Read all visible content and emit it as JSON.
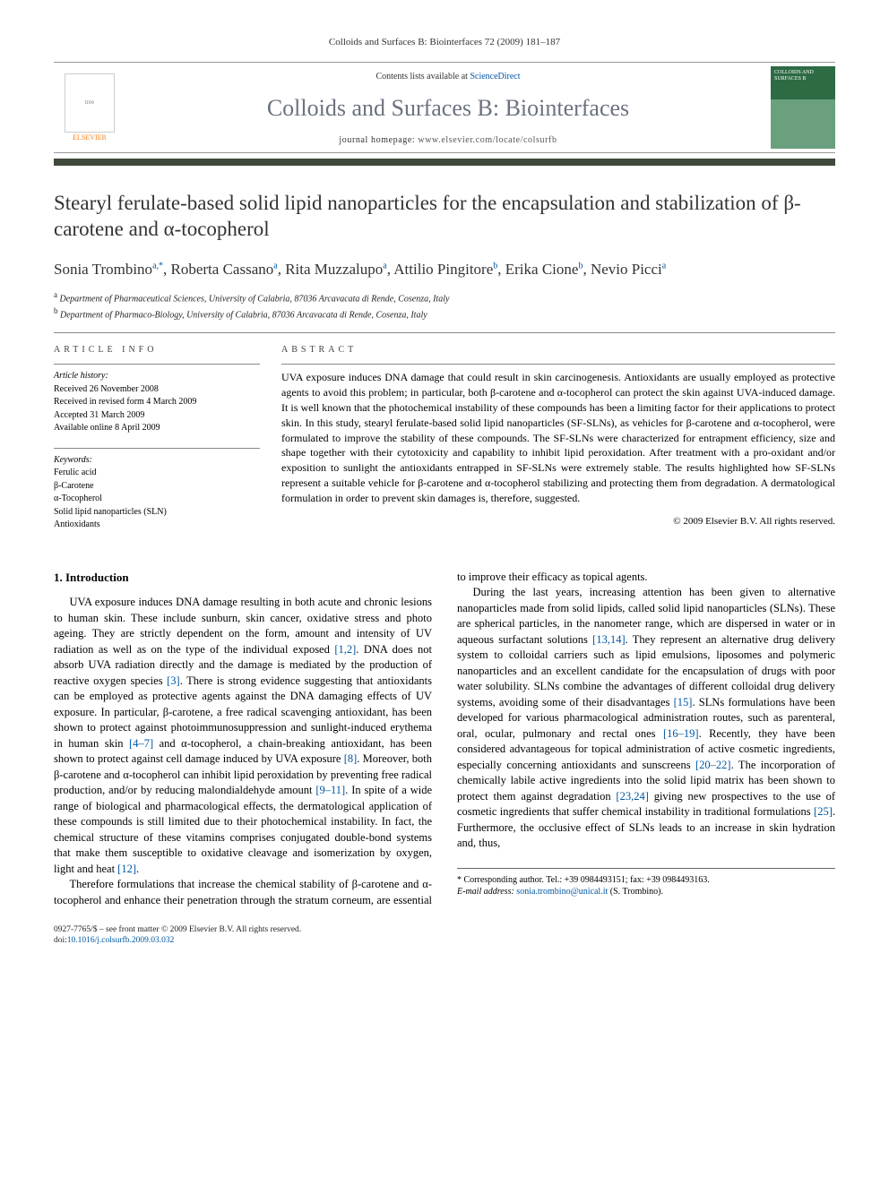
{
  "running_head": "Colloids and Surfaces B: Biointerfaces 72 (2009) 181–187",
  "masthead": {
    "contents_prefix": "Contents lists available at ",
    "contents_link": "ScienceDirect",
    "journal_name": "Colloids and Surfaces B: Biointerfaces",
    "homepage_prefix": "journal homepage: ",
    "homepage_url": "www.elsevier.com/locate/colsurfb",
    "publisher_label": "ELSEVIER",
    "cover_caption": "COLLOIDS AND SURFACES B"
  },
  "article": {
    "title": "Stearyl ferulate-based solid lipid nanoparticles for the encapsulation and stabilization of β-carotene and α-tocopherol",
    "authors_html_parts": [
      {
        "name": "Sonia Trombino",
        "marks": "a,*"
      },
      {
        "name": "Roberta Cassano",
        "marks": "a"
      },
      {
        "name": "Rita Muzzalupo",
        "marks": "a"
      },
      {
        "name": "Attilio Pingitore",
        "marks": "b"
      },
      {
        "name": "Erika Cione",
        "marks": "b"
      },
      {
        "name": "Nevio Picci",
        "marks": "a"
      }
    ],
    "affiliations": [
      {
        "mark": "a",
        "text": "Department of Pharmaceutical Sciences, University of Calabria, 87036 Arcavacata di Rende, Cosenza, Italy"
      },
      {
        "mark": "b",
        "text": "Department of Pharmaco-Biology, University of Calabria, 87036 Arcavacata di Rende, Cosenza, Italy"
      }
    ]
  },
  "article_info": {
    "heading": "ARTICLE INFO",
    "history_label": "Article history:",
    "history": [
      "Received 26 November 2008",
      "Received in revised form 4 March 2009",
      "Accepted 31 March 2009",
      "Available online 8 April 2009"
    ],
    "keywords_label": "Keywords:",
    "keywords": [
      "Ferulic acid",
      "β-Carotene",
      "α-Tocopherol",
      "Solid lipid nanoparticles (SLN)",
      "Antioxidants"
    ]
  },
  "abstract": {
    "heading": "ABSTRACT",
    "text": "UVA exposure induces DNA damage that could result in skin carcinogenesis. Antioxidants are usually employed as protective agents to avoid this problem; in particular, both β-carotene and α-tocopherol can protect the skin against UVA-induced damage. It is well known that the photochemical instability of these compounds has been a limiting factor for their applications to protect skin. In this study, stearyl ferulate-based solid lipid nanoparticles (SF-SLNs), as vehicles for β-carotene and α-tocopherol, were formulated to improve the stability of these compounds. The SF-SLNs were characterized for entrapment efficiency, size and shape together with their cytotoxicity and capability to inhibit lipid peroxidation. After treatment with a pro-oxidant and/or exposition to sunlight the antioxidants entrapped in SF-SLNs were extremely stable. The results highlighted how SF-SLNs represent a suitable vehicle for β-carotene and α-tocopherol stabilizing and protecting them from degradation. A dermatological formulation in order to prevent skin damages is, therefore, suggested.",
    "copyright": "© 2009 Elsevier B.V. All rights reserved."
  },
  "body": {
    "section1_heading": "1.  Introduction",
    "p1a": "UVA exposure induces DNA damage resulting in both acute and chronic lesions to human skin. These include sunburn, skin cancer, oxidative stress and photo ageing. They are strictly dependent on the form, amount and intensity of UV radiation as well as on the type of the individual exposed ",
    "r1": "[1,2]",
    "p1b": ". DNA does not absorb UVA radiation directly and the damage is mediated by the production of reactive oxygen species ",
    "r2": "[3]",
    "p1c": ". There is strong evidence suggesting that antioxidants can be employed as protective agents against the DNA damaging effects of UV exposure. In particular, β-carotene, a free radical scavenging antioxidant, has been shown to protect against photoimmunosuppression and sunlight-induced erythema in human skin ",
    "r3": "[4–7]",
    "p1d": " and α-tocopherol, a chain-breaking antioxidant, has been shown to protect against cell damage induced by UVA exposure ",
    "r4": "[8]",
    "p1e": ". Moreover, both β-carotene and α-tocopherol can inhibit lipid peroxidation by preventing free radical production, and/or by reducing malondialdehyde amount ",
    "r5": "[9–11]",
    "p1f": ". In spite of a wide range of biological and pharmacological effects, the dermatological application of these compounds is still limited due to their photochemical instability. In fact, the chemical structure of these vitamins comprises conjugated double-bond systems that make them susceptible to oxidative cleavage and isomerization by oxygen, light and heat ",
    "r6": "[12]",
    "p1g": ".",
    "p2": "Therefore formulations that increase the chemical stability of β-carotene and α-tocopherol and enhance their penetration through the stratum corneum, are essential to improve their efficacy as topical agents.",
    "p3a": "During the last years, increasing attention has been given to alternative nanoparticles made from solid lipids, called solid lipid nanoparticles (SLNs). These are spherical particles, in the nanometer range, which are dispersed in water or in aqueous surfactant solutions ",
    "r7": "[13,14]",
    "p3b": ". They represent an alternative drug delivery system to colloidal carriers such as lipid emulsions, liposomes and polymeric nanoparticles and an excellent candidate for the encapsulation of drugs with poor water solubility. SLNs combine the advantages of different colloidal drug delivery systems, avoiding some of their disadvantages ",
    "r8": "[15]",
    "p3c": ". SLNs formulations have been developed for various pharmacological administration routes, such as parenteral, oral, ocular, pulmonary and rectal ones ",
    "r9": "[16–19]",
    "p3d": ". Recently, they have been considered advantageous for topical administration of active cosmetic ingredients, especially concerning antioxidants and sunscreens ",
    "r10": "[20–22]",
    "p3e": ". The incorporation of chemically labile active ingredients into the solid lipid matrix has been shown to protect them against degradation ",
    "r11": "[23,24]",
    "p3f": " giving new prospectives to the use of cosmetic ingredients that suffer chemical instability in traditional formulations ",
    "r12": "[25]",
    "p3g": ". Furthermore, the occlusive effect of SLNs leads to an increase in skin hydration and, thus,"
  },
  "footnote": {
    "corr_label": "* Corresponding author. Tel.: +39 0984493151; fax: +39 0984493163.",
    "email_label": "E-mail address:",
    "email": "sonia.trombino@unical.it",
    "email_paren": " (S. Trombino)."
  },
  "footer": {
    "line1": "0927-7765/$ – see front matter © 2009 Elsevier B.V. All rights reserved.",
    "doi_label": "doi:",
    "doi": "10.1016/j.colsurfb.2009.03.032"
  },
  "colors": {
    "link": "#0056a3",
    "journal_grey": "#6b7280",
    "bar": "#404a3c",
    "elsevier_orange": "#f58220"
  }
}
